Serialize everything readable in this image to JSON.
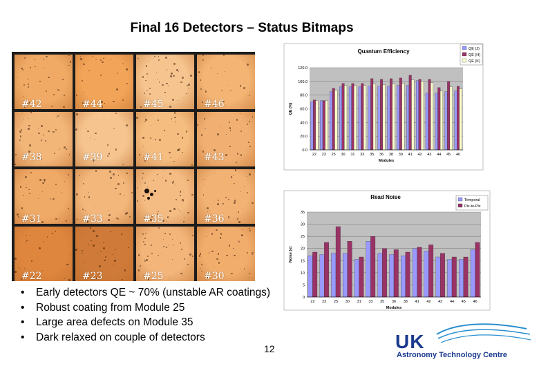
{
  "slide": {
    "title": "Final 16 Detectors – Status Bitmaps",
    "page_number": "12",
    "bullets": [
      "Early detectors QE ~ 70% (unstable AR coatings)",
      "Robust coating from Module 25",
      "Large area defects on Module 35",
      "Dark relaxed on couple of detectors"
    ]
  },
  "bitmaps": {
    "rows": [
      [
        {
          "label": "#42",
          "color": "#f0aa66"
        },
        {
          "label": "#44",
          "color": "#f2a458"
        },
        {
          "label": "#45",
          "color": "#f6c48e"
        },
        {
          "label": "#46",
          "color": "#f3b474"
        }
      ],
      [
        {
          "label": "#38",
          "color": "#f3b679"
        },
        {
          "label": "#39",
          "color": "#f6c48f"
        },
        {
          "label": "#41",
          "color": "#f5bd80"
        },
        {
          "label": "#43",
          "color": "#f1b072"
        }
      ],
      [
        {
          "label": "#31",
          "color": "#f0aa68"
        },
        {
          "label": "#33",
          "color": "#f3b77c"
        },
        {
          "label": "#35",
          "color": "#f4bb82"
        },
        {
          "label": "#36",
          "color": "#f2b274"
        }
      ],
      [
        {
          "label": "#22",
          "color": "#df863e"
        },
        {
          "label": "#23",
          "color": "#cf7a38"
        },
        {
          "label": "#25",
          "color": "#f3b57a"
        },
        {
          "label": "#30",
          "color": "#f1ad6c"
        }
      ]
    ]
  },
  "logo": {
    "primary": "UK",
    "secondary": "Astronomy Technology Centre",
    "color": "#1a3a8f"
  },
  "chart_data": [
    {
      "type": "bar",
      "title": "Quantum Efficiency",
      "xlabel": "Modules",
      "ylabel": "QE (%)",
      "ylim": [
        0,
        120
      ],
      "yticks": [
        "0.0",
        "20.0",
        "40.0",
        "60.0",
        "80.0",
        "100.0",
        "120.0"
      ],
      "categories": [
        "22",
        "23",
        "25",
        "30",
        "31",
        "33",
        "35",
        "36",
        "38",
        "39",
        "41",
        "42",
        "43",
        "44",
        "45",
        "46"
      ],
      "legend_position": "top-right",
      "grid": true,
      "series": [
        {
          "name": "QE (J)",
          "color": "#9999ff",
          "values": [
            70,
            72,
            85,
            92,
            92,
            92,
            93,
            93,
            93,
            94,
            94,
            101,
            83,
            83,
            85,
            86
          ]
        },
        {
          "name": "QE (H)",
          "color": "#993366",
          "values": [
            73,
            72,
            90,
            97,
            97,
            97,
            104,
            103,
            104,
            105,
            109,
            103,
            103,
            91,
            100,
            93
          ]
        },
        {
          "name": "QE (K)",
          "color": "#ffffcc",
          "values": [
            72,
            72,
            87,
            94,
            94,
            94,
            96,
            95,
            96,
            97,
            102,
            100,
            98,
            86,
            92,
            89
          ]
        }
      ]
    },
    {
      "type": "bar",
      "title": "Read Noise",
      "xlabel": "Modules",
      "ylabel": "Noise (e)",
      "ylim": [
        0,
        35
      ],
      "yticks": [
        "0",
        "5",
        "10",
        "15",
        "20",
        "25",
        "30",
        "35"
      ],
      "categories": [
        "22",
        "23",
        "25",
        "30",
        "31",
        "33",
        "35",
        "36",
        "38",
        "41",
        "42",
        "43",
        "44",
        "45",
        "46"
      ],
      "legend_position": "top-right",
      "grid": true,
      "series": [
        {
          "name": "Temporal",
          "color": "#9999ff",
          "values": [
            17,
            17.5,
            18,
            18,
            15.5,
            23,
            18,
            17.5,
            17,
            20,
            19,
            16.5,
            15.5,
            15.5,
            19.5
          ]
        },
        {
          "name": "Pix-to-Pix",
          "color": "#993366",
          "values": [
            18.5,
            22.5,
            29,
            23,
            16.5,
            25,
            20,
            19.5,
            18.5,
            20.5,
            21.5,
            18,
            16.5,
            16.5,
            22.5
          ]
        }
      ]
    }
  ]
}
